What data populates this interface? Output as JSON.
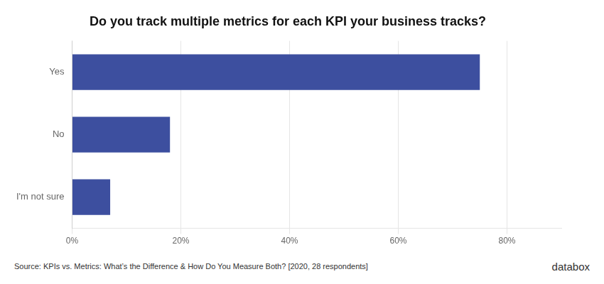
{
  "chart_data": {
    "type": "bar",
    "orientation": "horizontal",
    "title": "Do you track multiple metrics for each KPI your business tracks?",
    "categories": [
      "I'm not sure",
      "No",
      "Yes"
    ],
    "values": [
      7,
      18,
      75
    ],
    "color": "#3d4f9f",
    "xlim": [
      0,
      90
    ],
    "xticks": [
      {
        "value": 0,
        "label": "0%"
      },
      {
        "value": 20,
        "label": "20%"
      },
      {
        "value": 40,
        "label": "40%"
      },
      {
        "value": 60,
        "label": "60%"
      },
      {
        "value": 80,
        "label": "80%"
      }
    ],
    "grid": true,
    "annotations": [
      "Source: KPIs vs. Metrics: What’s the Difference & How Do You Measure Both? [2020, 28 respondents]",
      "databox"
    ]
  }
}
